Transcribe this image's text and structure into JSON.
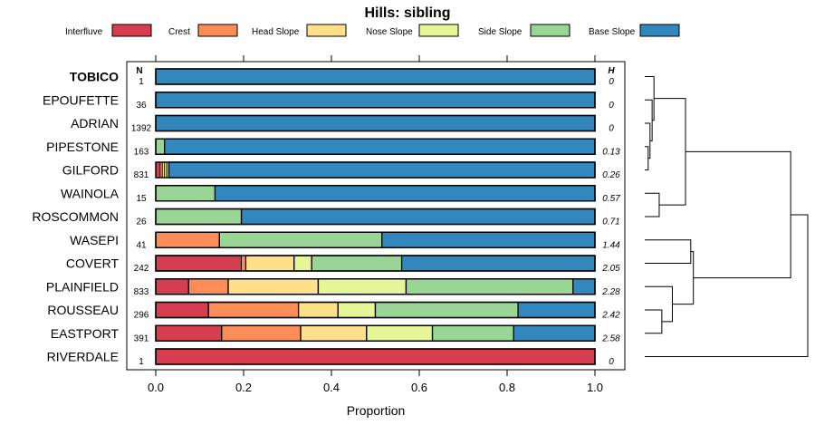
{
  "chart_data": {
    "type": "bar",
    "subtype": "stacked-horizontal-proportion",
    "title": "Hills: sibling",
    "xlabel": "Proportion",
    "ylabel": "",
    "xlim": [
      0,
      1
    ],
    "x_ticks": [
      0.0,
      0.2,
      0.4,
      0.6,
      0.8,
      1.0
    ],
    "x_tick_labels": [
      "0.0",
      "0.2",
      "0.4",
      "0.6",
      "0.8",
      "1.0"
    ],
    "legend_position": "top",
    "n_header": "N",
    "h_header": "H",
    "legend": [
      {
        "name": "Interfluve",
        "color": "#D53E4F"
      },
      {
        "name": "Crest",
        "color": "#FC8D59"
      },
      {
        "name": "Head Slope",
        "color": "#FEE08B"
      },
      {
        "name": "Nose Slope",
        "color": "#E6F598"
      },
      {
        "name": "Side Slope",
        "color": "#99D594"
      },
      {
        "name": "Base Slope",
        "color": "#3288BD"
      }
    ],
    "categories": [
      "TOBICO",
      "EPOUFETTE",
      "ADRIAN",
      "PIPESTONE",
      "GILFORD",
      "WAINOLA",
      "ROSCOMMON",
      "WASEPI",
      "COVERT",
      "PLAINFIELD",
      "ROUSSEAU",
      "EASTPORT",
      "RIVERDALE"
    ],
    "highlight": "TOBICO",
    "n": [
      "1",
      "36",
      "1392",
      "163",
      "831",
      "15",
      "26",
      "41",
      "242",
      "833",
      "296",
      "391",
      "1"
    ],
    "h": [
      "0",
      "0",
      "0",
      "0.13",
      "0.26",
      "0.57",
      "0.71",
      "1.44",
      "2.05",
      "2.28",
      "2.42",
      "2.58",
      "0"
    ],
    "series": [
      {
        "name": "Interfluve",
        "values": [
          0,
          0,
          0,
          0,
          0.01,
          0,
          0,
          0,
          0.195,
          0.075,
          0.12,
          0.15,
          1.0
        ]
      },
      {
        "name": "Crest",
        "values": [
          0,
          0,
          0,
          0,
          0.005,
          0,
          0,
          0.145,
          0.01,
          0.09,
          0.205,
          0.18,
          0
        ]
      },
      {
        "name": "Head Slope",
        "values": [
          0,
          0,
          0,
          0,
          0.005,
          0,
          0,
          0,
          0.11,
          0.205,
          0.09,
          0.15,
          0
        ]
      },
      {
        "name": "Nose Slope",
        "values": [
          0,
          0,
          0,
          0,
          0.005,
          0,
          0,
          0,
          0.04,
          0.2,
          0.085,
          0.15,
          0
        ]
      },
      {
        "name": "Side Slope",
        "values": [
          0,
          0,
          0,
          0.02,
          0.005,
          0.135,
          0.195,
          0.37,
          0.205,
          0.38,
          0.325,
          0.185,
          0
        ]
      },
      {
        "name": "Base Slope",
        "values": [
          1.0,
          1.0,
          1.0,
          0.98,
          0.97,
          0.865,
          0.805,
          0.485,
          0.44,
          0.05,
          0.175,
          0.185,
          0
        ]
      }
    ],
    "dendrogram": {
      "leaf_order": [
        0,
        1,
        2,
        3,
        4,
        5,
        6,
        7,
        8,
        9,
        10,
        11,
        12
      ],
      "merges": [
        [
          3,
          4,
          0.13
        ],
        [
          2,
          -1,
          0.2
        ],
        [
          1,
          -2,
          0.28
        ],
        [
          0,
          -3,
          0.35
        ],
        [
          5,
          6,
          0.55
        ],
        [
          -4,
          -5,
          1.55
        ],
        [
          7,
          8,
          1.75
        ],
        [
          10,
          11,
          0.65
        ],
        [
          9,
          -8,
          1.05
        ],
        [
          -7,
          -9,
          1.85
        ],
        [
          -6,
          -10,
          5.55
        ],
        [
          -11,
          12,
          6.2
        ]
      ],
      "max_height": 6.2
    }
  }
}
